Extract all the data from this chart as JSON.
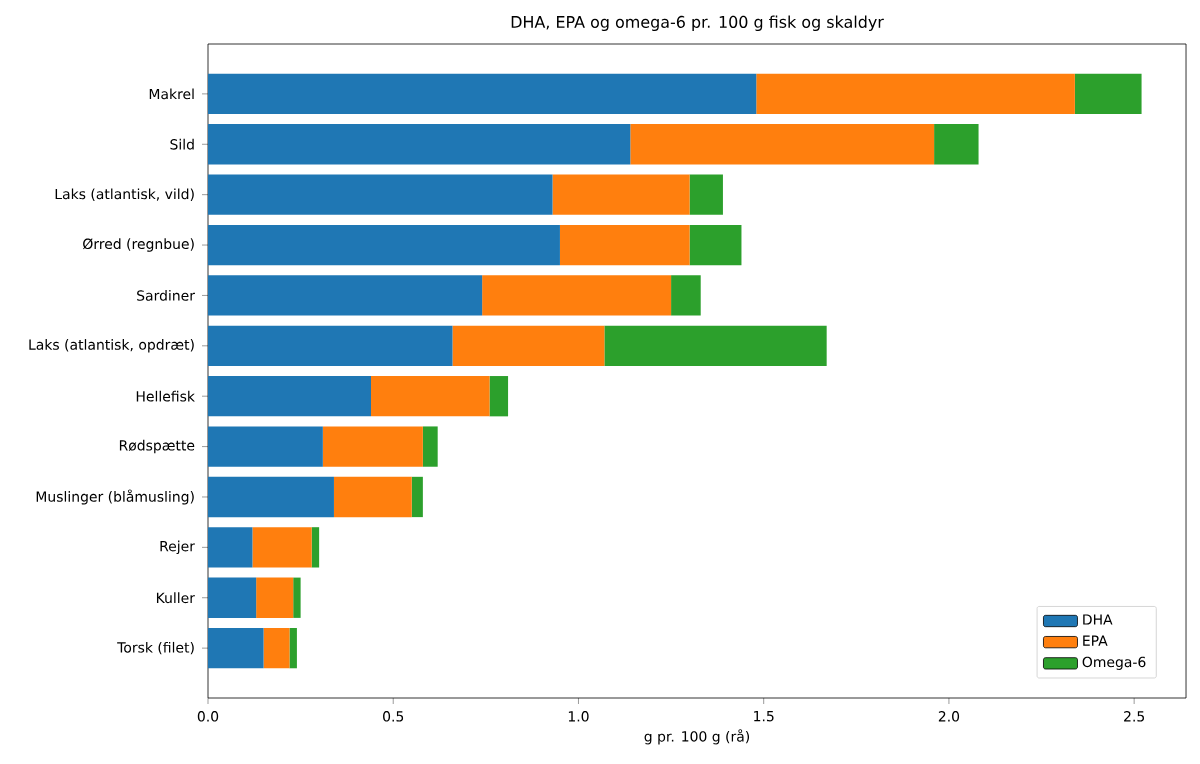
{
  "chart_data": {
    "type": "bar",
    "orientation": "horizontal",
    "stacked": true,
    "title": "DHA, EPA og omega-6 pr. 100 g fisk og skaldyr",
    "xlabel": "g pr. 100 g (rå)",
    "categories": [
      "Makrel",
      "Sild",
      "Laks (atlantisk, vild)",
      "Ørred (regnbue)",
      "Sardiner",
      "Laks (atlantisk, opdræt)",
      "Hellefisk",
      "Rødspætte",
      "Muslinger (blåmusling)",
      "Rejer",
      "Kuller",
      "Torsk (filet)"
    ],
    "series": [
      {
        "name": "DHA",
        "color": "#1f77b4",
        "values": [
          1.48,
          1.14,
          0.93,
          0.95,
          0.74,
          0.66,
          0.44,
          0.31,
          0.34,
          0.12,
          0.13,
          0.15
        ]
      },
      {
        "name": "EPA",
        "color": "#ff7f0e",
        "values": [
          0.86,
          0.82,
          0.37,
          0.35,
          0.51,
          0.41,
          0.32,
          0.27,
          0.21,
          0.16,
          0.1,
          0.07
        ]
      },
      {
        "name": "Omega-6",
        "color": "#2ca02c",
        "values": [
          0.18,
          0.12,
          0.09,
          0.14,
          0.08,
          0.6,
          0.05,
          0.04,
          0.03,
          0.02,
          0.02,
          0.02
        ]
      }
    ],
    "xlim": [
      0,
      2.64
    ],
    "xticks": [
      {
        "value": 0,
        "label": "0.0"
      },
      0.5,
      {
        "value": 1,
        "label": "1.0"
      },
      1.5,
      {
        "value": 2,
        "label": "2.0"
      },
      2.5
    ],
    "legend": "bottom right"
  }
}
